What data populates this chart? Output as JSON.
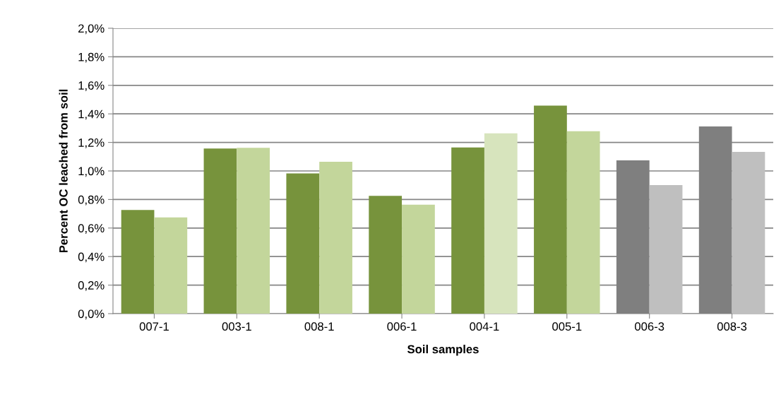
{
  "chart_data": {
    "type": "bar",
    "xlabel": "Soil samples",
    "ylabel": "Percent OC leached from soil",
    "categories": [
      "007-1",
      "003-1",
      "008-1",
      "006-1",
      "004-1",
      "005-1",
      "006-3",
      "008-3"
    ],
    "series": [
      {
        "colors": [
          "#77933c",
          "#77933c",
          "#77933c",
          "#77933c",
          "#77933c",
          "#77933c",
          "#7f7f7f",
          "#7f7f7f"
        ],
        "values": [
          0.726,
          1.157,
          0.983,
          0.825,
          1.164,
          1.458,
          1.074,
          1.312
        ]
      },
      {
        "colors": [
          "#c3d69b",
          "#c3d69b",
          "#c3d69b",
          "#c3d69b",
          "#d7e4bd",
          "#c3d69b",
          "#bfbfbf",
          "#bfbfbf"
        ],
        "values": [
          0.674,
          1.162,
          1.064,
          0.764,
          1.263,
          1.278,
          0.901,
          1.134
        ]
      }
    ],
    "ylim": [
      0,
      2.0
    ],
    "yticks": [
      {
        "value": 0,
        "label": "0,0%"
      },
      {
        "value": 0.2,
        "label": "0,2%"
      },
      {
        "value": 0.4,
        "label": "0,4%"
      },
      {
        "value": 0.6,
        "label": "0,6%"
      },
      {
        "value": 0.8,
        "label": "0,8%"
      },
      {
        "value": 1.0,
        "label": "1,0%"
      },
      {
        "value": 1.2,
        "label": "1,2%"
      },
      {
        "value": 1.4,
        "label": "1,4%"
      },
      {
        "value": 1.6,
        "label": "1,6%"
      },
      {
        "value": 1.8,
        "label": "1,8%"
      },
      {
        "value": 2.0,
        "label": "2,0%"
      }
    ],
    "grid": "y"
  }
}
